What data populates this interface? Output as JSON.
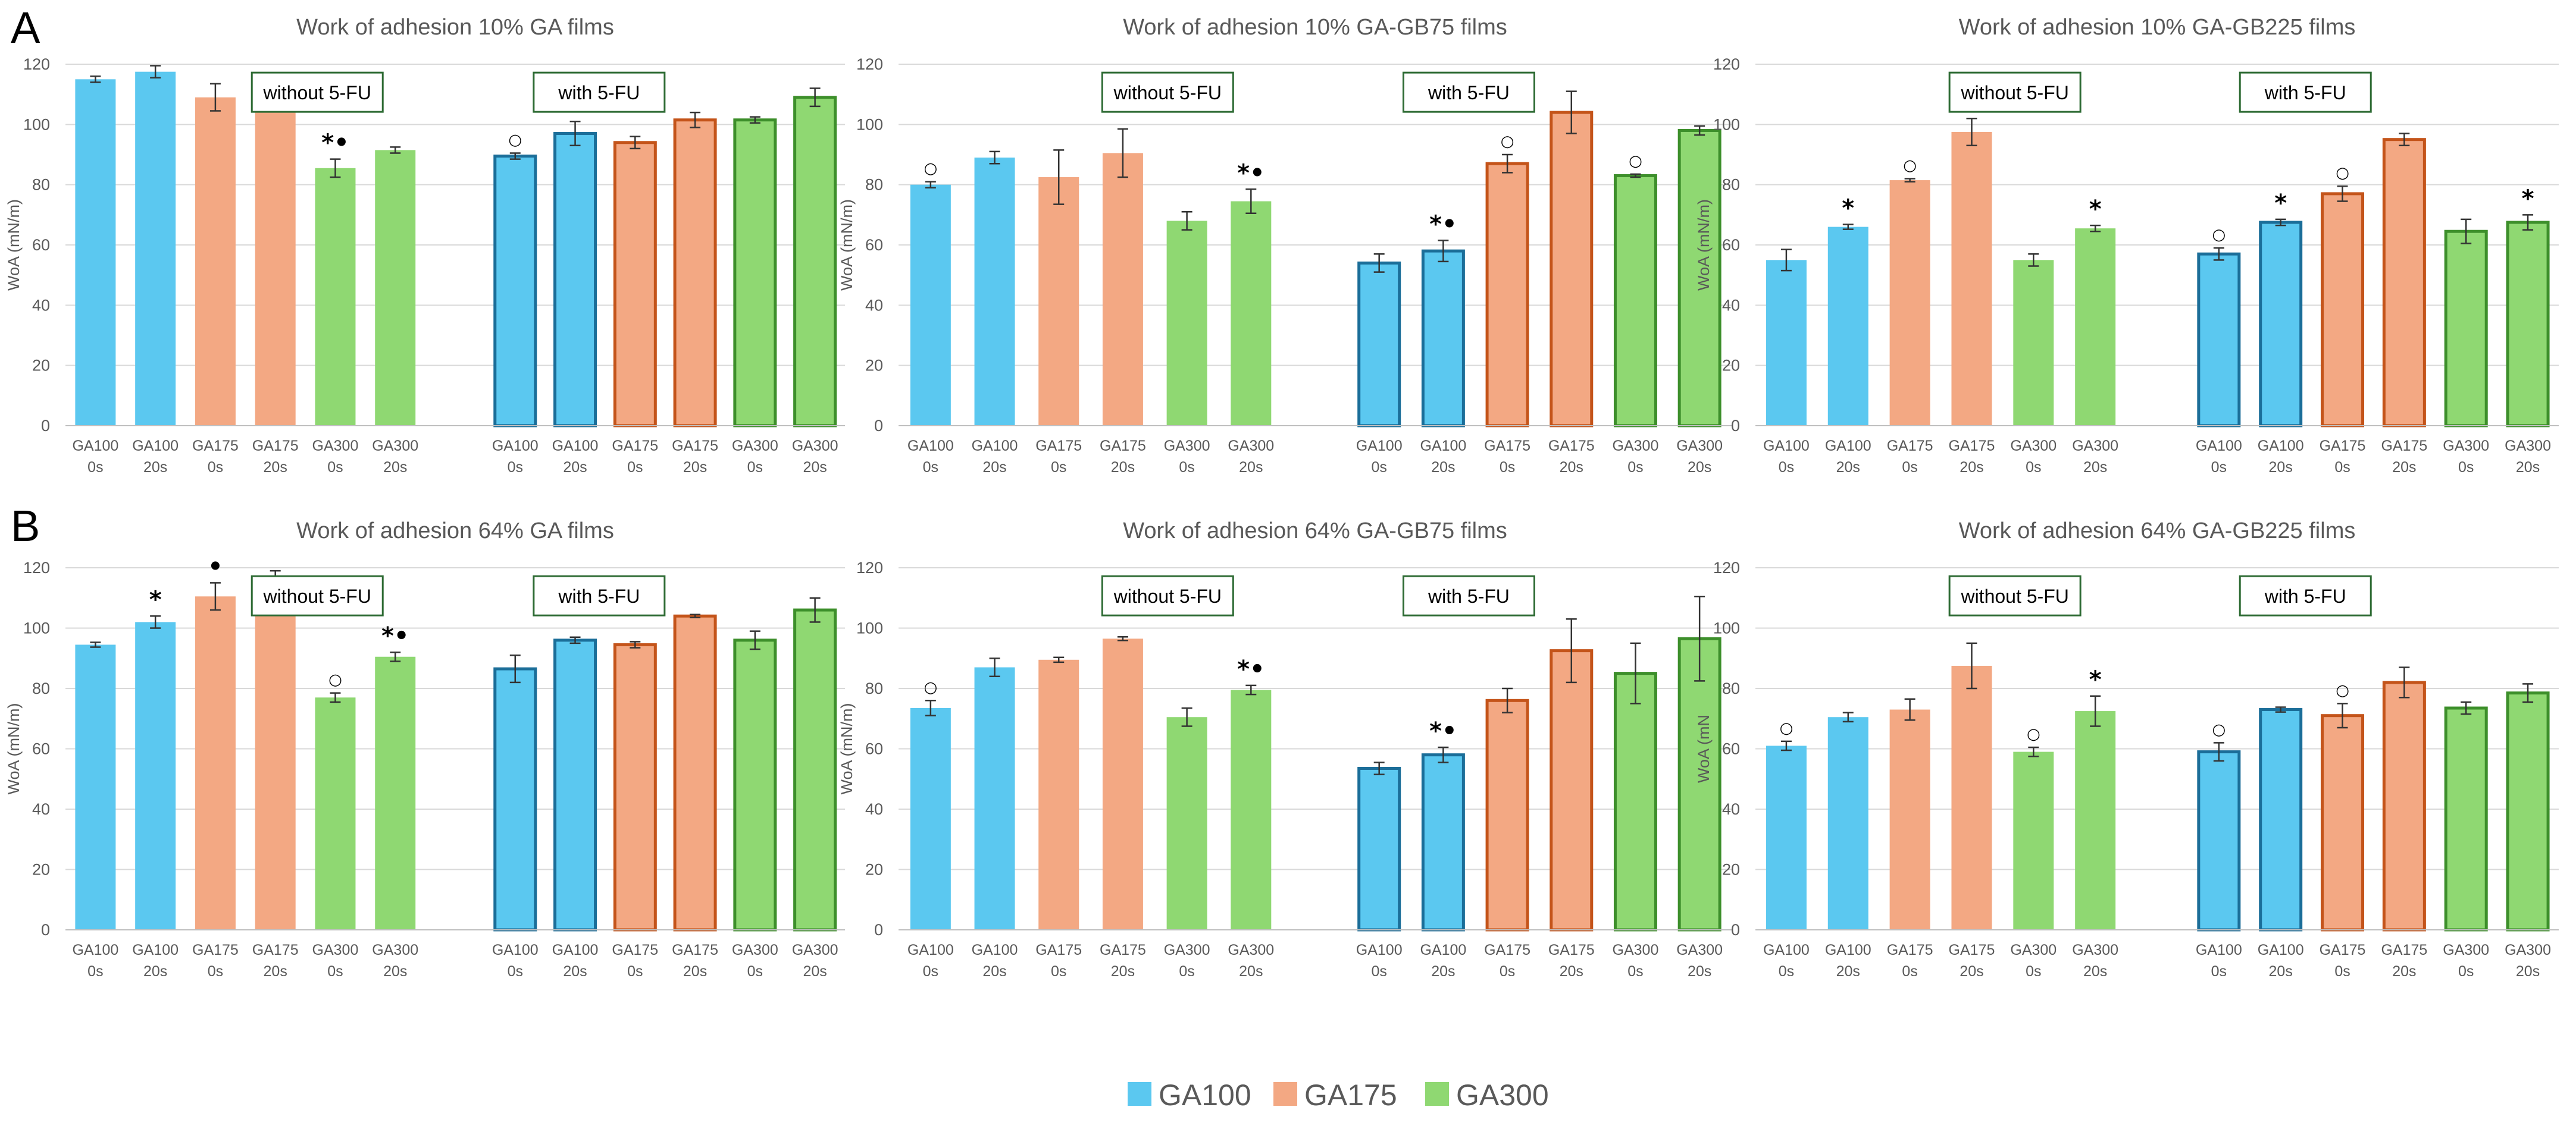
{
  "figure": {
    "panel_labels": [
      "A",
      "B"
    ],
    "colors": {
      "GA100": "#5bc8f0",
      "GA175": "#f3a883",
      "GA300": "#8fd872",
      "GA100_edge": "#1b6e99",
      "GA175_edge": "#c4541a",
      "GA300_edge": "#3d8f2b",
      "box_border": "#2e6b34",
      "grid": "#d9d9d9"
    },
    "groups": {
      "left": "without 5-FU",
      "right": "with 5-FU"
    },
    "legend": [
      {
        "label": "GA100",
        "color": "#5bc8f0"
      },
      {
        "label": "GA175",
        "color": "#f3a883"
      },
      {
        "label": "GA300",
        "color": "#8fd872"
      }
    ]
  },
  "chart_data": [
    {
      "type": "bar",
      "row": 0,
      "col": 0,
      "panel": "A",
      "title": "Work of adhesion 10% GA films",
      "ylabel": "WoA (mN/m)",
      "ylim": [
        0,
        120
      ],
      "yticks": [
        0,
        20,
        40,
        60,
        80,
        100,
        120
      ],
      "categories": [
        [
          "GA100",
          "0s"
        ],
        [
          "GA100",
          "20s"
        ],
        [
          "GA175",
          "0s"
        ],
        [
          "GA175",
          "20s"
        ],
        [
          "GA300",
          "0s"
        ],
        [
          "GA300",
          "20s"
        ]
      ],
      "series": [
        {
          "name": "without 5-FU",
          "values": [
            115,
            117.5,
            109,
            112.5,
            85.5,
            91.5
          ],
          "errors": [
            1,
            2,
            4.5,
            4.5,
            3,
            1
          ]
        },
        {
          "name": "with 5-FU",
          "values": [
            89.5,
            97,
            94,
            101.5,
            101.5,
            109
          ],
          "errors": [
            1,
            4,
            2,
            2.5,
            1,
            3
          ]
        }
      ],
      "annotations": [
        {
          "series": 0,
          "bar": 4,
          "text": "*•"
        },
        {
          "series": 1,
          "bar": 0,
          "text": "○"
        }
      ]
    },
    {
      "type": "bar",
      "row": 0,
      "col": 1,
      "title": "Work of adhesion 10% GA-GB75 films",
      "ylabel": "WoA (mN/m)",
      "ylim": [
        0,
        120
      ],
      "yticks": [
        0,
        20,
        40,
        60,
        80,
        100,
        120
      ],
      "categories": [
        [
          "GA100",
          "0s"
        ],
        [
          "GA100",
          "20s"
        ],
        [
          "GA175",
          "0s"
        ],
        [
          "GA175",
          "20s"
        ],
        [
          "GA300",
          "0s"
        ],
        [
          "GA300",
          "20s"
        ]
      ],
      "series": [
        {
          "name": "without 5-FU",
          "values": [
            80,
            89,
            82.5,
            90.5,
            68,
            74.5
          ],
          "errors": [
            1,
            2,
            9,
            8,
            3,
            4
          ]
        },
        {
          "name": "with 5-FU",
          "values": [
            54,
            58,
            87,
            104,
            83,
            98
          ],
          "errors": [
            3,
            3.5,
            3,
            7,
            0.5,
            1.5
          ]
        }
      ],
      "annotations": [
        {
          "series": 0,
          "bar": 0,
          "text": "○"
        },
        {
          "series": 0,
          "bar": 5,
          "text": "*•"
        },
        {
          "series": 1,
          "bar": 1,
          "text": "*•"
        },
        {
          "series": 1,
          "bar": 2,
          "text": "○"
        },
        {
          "series": 1,
          "bar": 4,
          "text": "○"
        }
      ]
    },
    {
      "type": "bar",
      "row": 0,
      "col": 2,
      "title": "Work of adhesion 10% GA-GB225 films",
      "ylabel": "WoA (mN/m)",
      "ylim": [
        0,
        120
      ],
      "yticks": [
        0,
        20,
        40,
        60,
        80,
        100,
        120
      ],
      "categories": [
        [
          "GA100",
          "0s"
        ],
        [
          "GA100",
          "20s"
        ],
        [
          "GA175",
          "0s"
        ],
        [
          "GA175",
          "20s"
        ],
        [
          "GA300",
          "0s"
        ],
        [
          "GA300",
          "20s"
        ]
      ],
      "series": [
        {
          "name": "without 5-FU",
          "values": [
            55,
            66,
            81.5,
            97.5,
            55,
            65.5
          ],
          "errors": [
            3.5,
            0.8,
            0.5,
            4.5,
            2,
            1
          ]
        },
        {
          "name": "with 5-FU",
          "values": [
            57,
            67.5,
            77,
            95,
            64.5,
            67.5
          ],
          "errors": [
            2,
            1,
            2.5,
            2,
            4,
            2.5
          ]
        }
      ],
      "annotations": [
        {
          "series": 0,
          "bar": 1,
          "text": "*"
        },
        {
          "series": 0,
          "bar": 2,
          "text": "○"
        },
        {
          "series": 0,
          "bar": 5,
          "text": "*"
        },
        {
          "series": 1,
          "bar": 0,
          "text": "○"
        },
        {
          "series": 1,
          "bar": 1,
          "text": "*"
        },
        {
          "series": 1,
          "bar": 2,
          "text": "○"
        },
        {
          "series": 1,
          "bar": 5,
          "text": "*"
        }
      ]
    },
    {
      "type": "bar",
      "row": 1,
      "col": 0,
      "panel": "B",
      "title": "Work of adhesion 64% GA films",
      "ylabel": "WoA (mN/m)",
      "ylim": [
        0,
        120
      ],
      "yticks": [
        0,
        20,
        40,
        60,
        80,
        100,
        120
      ],
      "categories": [
        [
          "GA100",
          "0s"
        ],
        [
          "GA100",
          "20s"
        ],
        [
          "GA175",
          "0s"
        ],
        [
          "GA175",
          "20s"
        ],
        [
          "GA300",
          "0s"
        ],
        [
          "GA300",
          "20s"
        ]
      ],
      "series": [
        {
          "name": "without 5-FU",
          "values": [
            94.5,
            102,
            110.5,
            116,
            77,
            90.5
          ],
          "errors": [
            0.8,
            2,
            4.5,
            3,
            1.5,
            1.5
          ]
        },
        {
          "name": "with 5-FU",
          "values": [
            86.5,
            96,
            94.5,
            104,
            96,
            106
          ],
          "errors": [
            4.5,
            1,
            1,
            0.5,
            3,
            4
          ]
        }
      ],
      "annotations": [
        {
          "series": 0,
          "bar": 1,
          "text": "*"
        },
        {
          "series": 0,
          "bar": 2,
          "text": "•"
        },
        {
          "series": 0,
          "bar": 4,
          "text": "○"
        },
        {
          "series": 0,
          "bar": 5,
          "text": "*•"
        }
      ]
    },
    {
      "type": "bar",
      "row": 1,
      "col": 1,
      "title": "Work of adhesion 64% GA-GB75 films",
      "ylabel": "WoA (mN/m)",
      "ylim": [
        0,
        120
      ],
      "yticks": [
        0,
        20,
        40,
        60,
        80,
        100,
        120
      ],
      "categories": [
        [
          "GA100",
          "0s"
        ],
        [
          "GA100",
          "20s"
        ],
        [
          "GA175",
          "0s"
        ],
        [
          "GA175",
          "20s"
        ],
        [
          "GA300",
          "0s"
        ],
        [
          "GA300",
          "20s"
        ]
      ],
      "series": [
        {
          "name": "without 5-FU",
          "values": [
            73.5,
            87,
            89.5,
            96.5,
            70.5,
            79.5
          ],
          "errors": [
            2.5,
            3,
            0.8,
            0.6,
            3,
            1.5
          ]
        },
        {
          "name": "with 5-FU",
          "values": [
            53.5,
            58,
            76,
            92.5,
            85,
            96.5
          ],
          "errors": [
            2,
            2.5,
            4,
            10.5,
            10,
            14
          ]
        }
      ],
      "annotations": [
        {
          "series": 0,
          "bar": 0,
          "text": "○"
        },
        {
          "series": 0,
          "bar": 5,
          "text": "*•"
        },
        {
          "series": 1,
          "bar": 1,
          "text": "*•"
        }
      ]
    },
    {
      "type": "bar",
      "row": 1,
      "col": 2,
      "title": "Work of adhesion 64% GA-GB225 films",
      "ylabel": "WoA (mN",
      "ylim": [
        0,
        120
      ],
      "yticks": [
        0,
        20,
        40,
        60,
        80,
        100,
        120
      ],
      "categories": [
        [
          "GA100",
          "0s"
        ],
        [
          "GA100",
          "20s"
        ],
        [
          "GA175",
          "0s"
        ],
        [
          "GA175",
          "20s"
        ],
        [
          "GA300",
          "0s"
        ],
        [
          "GA300",
          "20s"
        ]
      ],
      "series": [
        {
          "name": "without 5-FU",
          "values": [
            61,
            70.5,
            73,
            87.5,
            59,
            72.5
          ],
          "errors": [
            1.5,
            1.5,
            3.5,
            7.5,
            1.5,
            5
          ]
        },
        {
          "name": "with 5-FU",
          "values": [
            59,
            73,
            71,
            82,
            73.5,
            78.5
          ],
          "errors": [
            3,
            0.8,
            4,
            5,
            2,
            3
          ]
        }
      ],
      "annotations": [
        {
          "series": 0,
          "bar": 0,
          "text": "○"
        },
        {
          "series": 0,
          "bar": 4,
          "text": "○"
        },
        {
          "series": 0,
          "bar": 5,
          "text": "*"
        },
        {
          "series": 1,
          "bar": 0,
          "text": "○"
        },
        {
          "series": 1,
          "bar": 2,
          "text": "○"
        }
      ]
    }
  ]
}
